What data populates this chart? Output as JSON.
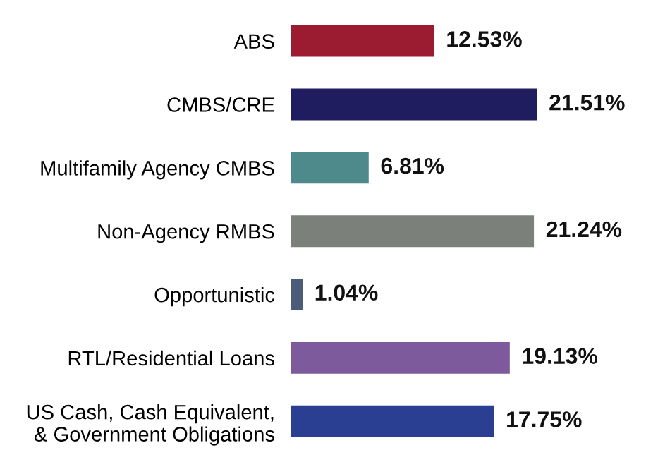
{
  "chart_data": {
    "type": "bar",
    "orientation": "horizontal",
    "tick_labels": "y",
    "categories": [
      "ABS",
      "CMBS/CRE",
      "Multifamily Agency CMBS",
      "Non-Agency RMBS",
      "Opportunistic",
      "RTL/Residential Loans",
      "US Cash, Cash Equivalent,\n& Government Obligations"
    ],
    "values": [
      12.53,
      21.51,
      6.81,
      21.24,
      1.04,
      19.13,
      17.75
    ],
    "colors": [
      "#9b1b30",
      "#1f1c5f",
      "#4e8a8c",
      "#7c807a",
      "#4b5b7a",
      "#7d5a9c",
      "#2a3f91"
    ],
    "value_labels": [
      "12.53%",
      "21.51%",
      "6.81%",
      "21.24%",
      "1.04%",
      "19.13%",
      "17.75%"
    ]
  }
}
